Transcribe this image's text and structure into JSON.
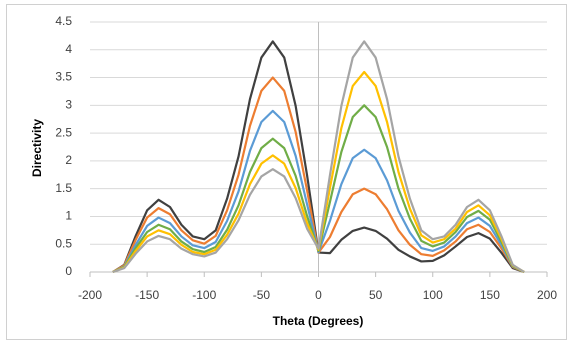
{
  "chart_data": {
    "type": "line",
    "x_label": "Theta (Degrees)",
    "y_label": "Directivity",
    "x": [
      -180,
      -170,
      -160,
      -150,
      -140,
      -130,
      -120,
      -110,
      -100,
      -90,
      -80,
      -70,
      -60,
      -50,
      -40,
      -30,
      -20,
      -10,
      0,
      10,
      20,
      30,
      40,
      50,
      60,
      70,
      80,
      90,
      100,
      110,
      120,
      130,
      140,
      150,
      160,
      170,
      180
    ],
    "series": [
      {
        "color": "#404040",
        "values": [
          0,
          0.13,
          0.65,
          1.11,
          1.3,
          1.17,
          0.85,
          0.64,
          0.59,
          0.75,
          1.32,
          2.08,
          3.11,
          3.86,
          4.15,
          3.86,
          2.99,
          1.74,
          0.35,
          0.34,
          0.58,
          0.74,
          0.8,
          0.74,
          0.6,
          0.4,
          0.28,
          0.19,
          0.2,
          0.3,
          0.46,
          0.63,
          0.7,
          0.6,
          0.35,
          0.07,
          0
        ]
      },
      {
        "color": "#ed7d31",
        "values": [
          0,
          0.12,
          0.58,
          0.98,
          1.15,
          1.04,
          0.75,
          0.57,
          0.51,
          0.65,
          1.11,
          1.75,
          2.63,
          3.26,
          3.5,
          3.26,
          2.52,
          1.47,
          0.35,
          0.63,
          1.08,
          1.4,
          1.5,
          1.4,
          1.13,
          0.75,
          0.49,
          0.32,
          0.29,
          0.39,
          0.55,
          0.77,
          0.85,
          0.72,
          0.43,
          0.09,
          0
        ]
      },
      {
        "color": "#5b9bd5",
        "values": [
          0,
          0.1,
          0.49,
          0.83,
          0.98,
          0.88,
          0.64,
          0.48,
          0.43,
          0.54,
          0.92,
          1.45,
          2.18,
          2.7,
          2.9,
          2.7,
          2.09,
          1.22,
          0.36,
          0.92,
          1.58,
          2.05,
          2.2,
          2.05,
          1.65,
          1.1,
          0.71,
          0.43,
          0.38,
          0.46,
          0.64,
          0.88,
          0.98,
          0.83,
          0.49,
          0.1,
          0
        ]
      },
      {
        "color": "#70ad47",
        "values": [
          0,
          0.09,
          0.43,
          0.72,
          0.85,
          0.77,
          0.55,
          0.41,
          0.36,
          0.45,
          0.76,
          1.2,
          1.8,
          2.23,
          2.4,
          2.23,
          1.73,
          1.01,
          0.38,
          1.26,
          2.16,
          2.79,
          3.0,
          2.79,
          2.25,
          1.5,
          0.96,
          0.56,
          0.46,
          0.53,
          0.72,
          0.99,
          1.1,
          0.94,
          0.55,
          0.11,
          0
        ]
      },
      {
        "color": "#ffc000",
        "values": [
          0,
          0.08,
          0.38,
          0.64,
          0.75,
          0.68,
          0.49,
          0.36,
          0.32,
          0.4,
          0.67,
          1.05,
          1.58,
          1.95,
          2.1,
          1.95,
          1.51,
          0.88,
          0.4,
          1.51,
          2.59,
          3.35,
          3.6,
          3.35,
          2.7,
          1.8,
          1.14,
          0.66,
          0.53,
          0.59,
          0.78,
          1.08,
          1.2,
          1.02,
          0.6,
          0.12,
          0
        ]
      },
      {
        "color": "#a5a5a5",
        "values": [
          0,
          0.07,
          0.33,
          0.55,
          0.65,
          0.59,
          0.42,
          0.32,
          0.28,
          0.35,
          0.59,
          0.93,
          1.39,
          1.72,
          1.85,
          1.72,
          1.33,
          0.78,
          0.42,
          1.74,
          2.99,
          3.86,
          4.15,
          3.86,
          3.11,
          2.08,
          1.32,
          0.75,
          0.59,
          0.64,
          0.85,
          1.17,
          1.3,
          1.11,
          0.65,
          0.13,
          0
        ]
      }
    ],
    "xlim": [
      -200,
      200
    ],
    "xticks": [
      -200,
      -150,
      -100,
      -50,
      0,
      50,
      100,
      150,
      200
    ],
    "ylim": [
      0,
      4.5
    ],
    "yticks": [
      0,
      0.5,
      1,
      1.5,
      2,
      2.5,
      3,
      3.5,
      4,
      4.5
    ],
    "grid": true
  }
}
